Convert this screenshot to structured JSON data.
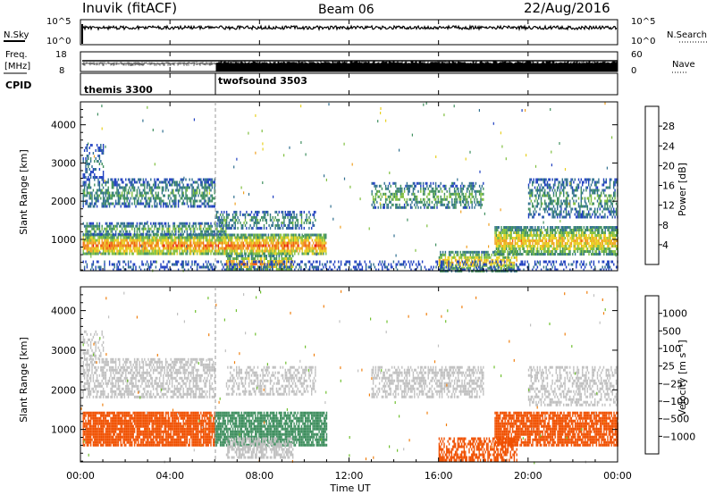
{
  "header": {
    "station": "Inuvik (fitACF)",
    "beam": "Beam 06",
    "date": "22/Aug/2016"
  },
  "side_labels": {
    "nsky": "N.Sky",
    "nsearch": "N.Search",
    "freq_line1": "Freq.",
    "freq_line2": "[MHz]",
    "nave": "Nave",
    "cpid": "CPID"
  },
  "cpid_segments": [
    {
      "label": "themis 3300",
      "start_hour": 0
    },
    {
      "label": "twofsound 3503",
      "start_hour": 6
    }
  ],
  "noise_axis": {
    "left_ticks": [
      "10^5",
      "10^0"
    ],
    "right_ticks": [
      "10^5",
      "10^0"
    ]
  },
  "freq_axis": {
    "left_ticks": [
      "18",
      "8"
    ],
    "right_ticks": [
      "60",
      "0"
    ]
  },
  "x_axis": {
    "label": "Time UT",
    "ticks": [
      "00:00",
      "04:00",
      "08:00",
      "12:00",
      "16:00",
      "20:00",
      "00:00"
    ],
    "range_hours": [
      0,
      24
    ]
  },
  "colors": {
    "power_scale": [
      "#0000ff",
      "#1f3fc0",
      "#2f6f8f",
      "#3f8f5f",
      "#7fbf3f",
      "#e8d020",
      "#f0a020",
      "#f06010",
      "#e81010"
    ],
    "velocity_scale": [
      "#e80000",
      "#f05000",
      "#f08010",
      "#f0b040",
      "#c0c0c0",
      "#c0c0c0",
      "#70c030",
      "#3f8f5f",
      "#2f6f8f",
      "#1f3fc0"
    ]
  },
  "chart_data": [
    {
      "type": "heatmap",
      "name": "power",
      "ylabel": "Slant Range [km]",
      "xlabel": "",
      "yticks": [
        1000,
        2000,
        3000,
        4000
      ],
      "ylim": [
        180,
        4600
      ],
      "xlim": [
        0,
        24
      ],
      "colorbar": {
        "label": "Power [dB]",
        "ticks": [
          "4",
          "8",
          "12",
          "16",
          "20",
          "24",
          "28"
        ],
        "range": [
          0,
          32
        ]
      },
      "regions": [
        {
          "t0": 0.1,
          "t1": 11.0,
          "r0": 600,
          "r1": 1150,
          "level": 26,
          "density": 0.85
        },
        {
          "t0": 0.1,
          "t1": 6.5,
          "r0": 1150,
          "r1": 1450,
          "level": 14,
          "density": 0.6
        },
        {
          "t0": 0.1,
          "t1": 6.0,
          "r0": 1850,
          "r1": 2600,
          "level": 12,
          "density": 0.55
        },
        {
          "t0": 0.1,
          "t1": 1.0,
          "r0": 2600,
          "r1": 3500,
          "level": 8,
          "density": 0.4
        },
        {
          "t0": 6.0,
          "t1": 10.5,
          "r0": 1300,
          "r1": 1750,
          "level": 12,
          "density": 0.45
        },
        {
          "t0": 6.5,
          "t1": 9.5,
          "r0": 200,
          "r1": 600,
          "level": 24,
          "density": 0.7
        },
        {
          "t0": 13.0,
          "t1": 18.0,
          "r0": 1800,
          "r1": 2500,
          "level": 14,
          "density": 0.5
        },
        {
          "t0": 16.0,
          "t1": 19.5,
          "r0": 200,
          "r1": 700,
          "level": 22,
          "density": 0.7
        },
        {
          "t0": 18.5,
          "t1": 24.0,
          "r0": 600,
          "r1": 1350,
          "level": 22,
          "density": 0.8
        },
        {
          "t0": 20.0,
          "t1": 24.0,
          "r0": 1600,
          "r1": 2600,
          "level": 12,
          "density": 0.5
        },
        {
          "t0": 0.1,
          "t1": 24.0,
          "r0": 200,
          "r1": 450,
          "level": 6,
          "density": 0.35
        }
      ]
    },
    {
      "type": "heatmap",
      "name": "velocity",
      "ylabel": "Slant Range [km]",
      "xlabel": "Time UT",
      "yticks": [
        1000,
        2000,
        3000,
        4000
      ],
      "ylim": [
        180,
        4600
      ],
      "xlim": [
        0,
        24
      ],
      "colorbar": {
        "label": "Velocity [m s⁻¹]",
        "ticks": [
          "1000",
          "500",
          "100",
          "25",
          "−25",
          "−100",
          "−500",
          "−1000"
        ]
      },
      "regions": [
        {
          "t0": 0.1,
          "t1": 6.0,
          "r0": 600,
          "r1": 1450,
          "level": -300,
          "density": 0.85
        },
        {
          "t0": 6.0,
          "t1": 11.0,
          "r0": 600,
          "r1": 1450,
          "level": 300,
          "density": 0.8
        },
        {
          "t0": 0.1,
          "t1": 6.0,
          "r0": 1850,
          "r1": 2800,
          "level": 0,
          "density": 0.55
        },
        {
          "t0": 0.1,
          "t1": 1.0,
          "r0": 2800,
          "r1": 3500,
          "level": 0,
          "density": 0.35
        },
        {
          "t0": 6.5,
          "t1": 10.5,
          "r0": 1900,
          "r1": 2600,
          "level": 0,
          "density": 0.45
        },
        {
          "t0": 6.5,
          "t1": 9.5,
          "r0": 300,
          "r1": 800,
          "level": 0,
          "density": 0.6
        },
        {
          "t0": 13.0,
          "t1": 18.0,
          "r0": 1800,
          "r1": 2600,
          "level": 0,
          "density": 0.5
        },
        {
          "t0": 16.0,
          "t1": 19.5,
          "r0": 200,
          "r1": 800,
          "level": -300,
          "density": 0.6
        },
        {
          "t0": 18.5,
          "t1": 24.0,
          "r0": 600,
          "r1": 1450,
          "level": -300,
          "density": 0.8
        },
        {
          "t0": 20.0,
          "t1": 24.0,
          "r0": 1600,
          "r1": 2600,
          "level": 0,
          "density": 0.45
        }
      ]
    }
  ]
}
